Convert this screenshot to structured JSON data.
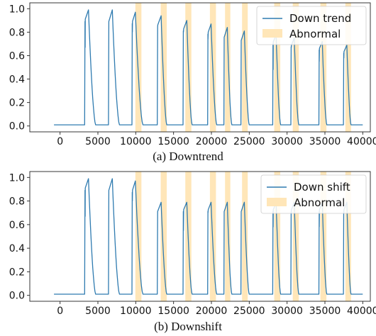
{
  "chart_data": [
    {
      "type": "line",
      "caption": "(a) Downtrend",
      "xlim": [
        -4000,
        41000
      ],
      "ylim": [
        -0.05,
        1.05
      ],
      "xticks": [
        0,
        5000,
        10000,
        15000,
        20000,
        25000,
        30000,
        35000,
        40000
      ],
      "yticks": [
        0.0,
        0.2,
        0.4,
        0.6,
        0.8,
        1.0
      ],
      "legend_position": "top-right",
      "grid": false,
      "series": [
        {
          "name": "Down trend",
          "color": "#2f7bb0",
          "baseline": 0.01,
          "pulses": [
            {
              "start": 3250,
              "peak_x": 3750,
              "end": 4700,
              "peak": 0.99,
              "dip": 0.67
            },
            {
              "start": 6400,
              "peak_x": 6900,
              "end": 7850,
              "peak": 0.99
            },
            {
              "start": 9500,
              "peak_x": 9950,
              "end": 10950,
              "peak": 0.97,
              "dip": 0.8
            },
            {
              "start": 12850,
              "peak_x": 13350,
              "end": 14100,
              "peak": 0.94,
              "dip": 0.86
            },
            {
              "start": 16250,
              "peak_x": 16750,
              "end": 17450,
              "peak": 0.9,
              "dip": 0.8
            },
            {
              "start": 19500,
              "peak_x": 19950,
              "end": 20700,
              "peak": 0.87,
              "dip": 0.74
            },
            {
              "start": 21650,
              "peak_x": 22100,
              "end": 22700,
              "peak": 0.84
            },
            {
              "start": 23900,
              "peak_x": 24350,
              "end": 25000,
              "peak": 0.81
            },
            {
              "start": 28100,
              "peak_x": 28550,
              "end": 29150,
              "peak": 0.78,
              "dip": 0.48
            },
            {
              "start": 30500,
              "peak_x": 30950,
              "end": 31550,
              "peak": 0.75,
              "dip": 0.67
            },
            {
              "start": 34200,
              "peak_x": 34650,
              "end": 35250,
              "peak": 0.72,
              "dip": 0.55
            },
            {
              "start": 37450,
              "peak_x": 37900,
              "end": 38450,
              "peak": 0.69,
              "dip": 0.58
            }
          ]
        }
      ],
      "abnormal": {
        "name": "Abnormal",
        "color": "#ffe6b8",
        "intervals": [
          [
            9950,
            10750
          ],
          [
            13300,
            14100
          ],
          [
            16550,
            17350
          ],
          [
            19800,
            20600
          ],
          [
            21800,
            22500
          ],
          [
            24050,
            24800
          ],
          [
            28300,
            29100
          ],
          [
            30750,
            31550
          ],
          [
            34400,
            35200
          ],
          [
            37700,
            38450
          ]
        ]
      }
    },
    {
      "type": "line",
      "caption": "(b) Downshift",
      "xlim": [
        -4000,
        41000
      ],
      "ylim": [
        -0.05,
        1.05
      ],
      "xticks": [
        0,
        5000,
        10000,
        15000,
        20000,
        25000,
        30000,
        35000,
        40000
      ],
      "yticks": [
        0.0,
        0.2,
        0.4,
        0.6,
        0.8,
        1.0
      ],
      "legend_position": "top-right",
      "grid": false,
      "series": [
        {
          "name": "Down shift",
          "color": "#2f7bb0",
          "baseline": 0.01,
          "pulses": [
            {
              "start": 3250,
              "peak_x": 3750,
              "end": 4700,
              "peak": 0.99,
              "dip": 0.67
            },
            {
              "start": 6400,
              "peak_x": 6900,
              "end": 7850,
              "peak": 0.99
            },
            {
              "start": 9500,
              "peak_x": 9950,
              "end": 10950,
              "peak": 0.97,
              "dip": 0.8
            },
            {
              "start": 12850,
              "peak_x": 13350,
              "end": 14100,
              "peak": 0.79
            },
            {
              "start": 16250,
              "peak_x": 16750,
              "end": 17450,
              "peak": 0.79,
              "dip": 0.55
            },
            {
              "start": 19500,
              "peak_x": 19950,
              "end": 20700,
              "peak": 0.79,
              "dip": 0.7
            },
            {
              "start": 21650,
              "peak_x": 22100,
              "end": 22700,
              "peak": 0.79
            },
            {
              "start": 23900,
              "peak_x": 24350,
              "end": 25000,
              "peak": 0.79
            },
            {
              "start": 28100,
              "peak_x": 28550,
              "end": 29150,
              "peak": 0.79,
              "dip": 0.58
            },
            {
              "start": 30500,
              "peak_x": 30950,
              "end": 31550,
              "peak": 0.79,
              "dip": 0.7
            },
            {
              "start": 34200,
              "peak_x": 34650,
              "end": 35250,
              "peak": 0.79,
              "dip": 0.58
            },
            {
              "start": 37450,
              "peak_x": 37900,
              "end": 38450,
              "peak": 0.79,
              "dip": 0.7
            }
          ]
        }
      ],
      "abnormal": {
        "name": "Abnormal",
        "color": "#ffe6b8",
        "intervals": [
          [
            9950,
            10750
          ],
          [
            13300,
            14100
          ],
          [
            16550,
            17350
          ],
          [
            19800,
            20600
          ],
          [
            21800,
            22500
          ],
          [
            24050,
            24800
          ],
          [
            28300,
            29100
          ],
          [
            30750,
            31550
          ],
          [
            34400,
            35200
          ],
          [
            37700,
            38450
          ]
        ]
      }
    }
  ]
}
